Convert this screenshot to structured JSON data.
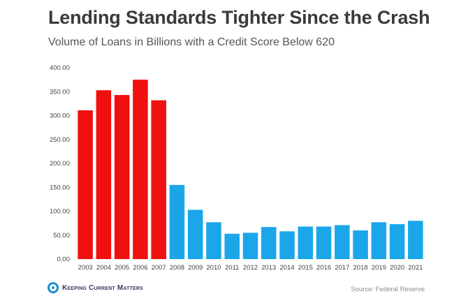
{
  "colors": {
    "highlight": "#f01010",
    "normal": "#1ba6ea"
  },
  "footer": {
    "brand": "Keeping Current Matters",
    "source": "Source: Federal Reserve"
  },
  "chart_data": {
    "type": "bar",
    "title": "Lending Standards Tighter Since the Crash",
    "subtitle": "Volume of Loans in Billions with a Credit Score Below 620",
    "xlabel": "",
    "ylabel": "",
    "ylim": [
      0,
      400
    ],
    "yticks": [
      "0.00",
      "50.00",
      "100.00",
      "150.00",
      "200.00",
      "250.00",
      "300.00",
      "350.00",
      "400.00"
    ],
    "grid": false,
    "categories": [
      "2003",
      "2004",
      "2005",
      "2006",
      "2007",
      "2008",
      "2009",
      "2010",
      "2011",
      "2012",
      "2013",
      "2014",
      "2015",
      "2016",
      "2017",
      "2018",
      "2019",
      "2020",
      "2021"
    ],
    "values": [
      311,
      353,
      343,
      375,
      332,
      155,
      103,
      77,
      53,
      55,
      67,
      58,
      68,
      68,
      71,
      60,
      77,
      73,
      80
    ],
    "highlighted_categories": [
      "2003",
      "2004",
      "2005",
      "2006",
      "2007"
    ]
  }
}
